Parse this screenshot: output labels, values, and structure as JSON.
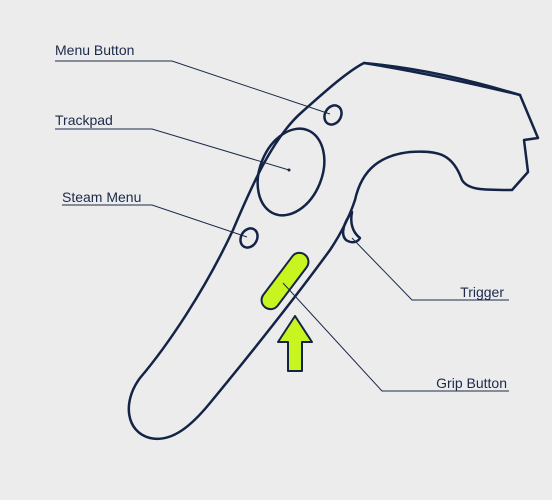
{
  "colors": {
    "background": "#ececec",
    "outline": "#142447",
    "label_text": "#1b2a4a",
    "highlight": "#c8f520"
  },
  "labels": {
    "menu_button": "Menu Button",
    "trackpad": "Trackpad",
    "steam_menu": "Steam Menu",
    "trigger": "Trigger",
    "grip_button": "Grip Button"
  },
  "icons": {
    "highlight_arrow": "arrow-up-icon"
  }
}
